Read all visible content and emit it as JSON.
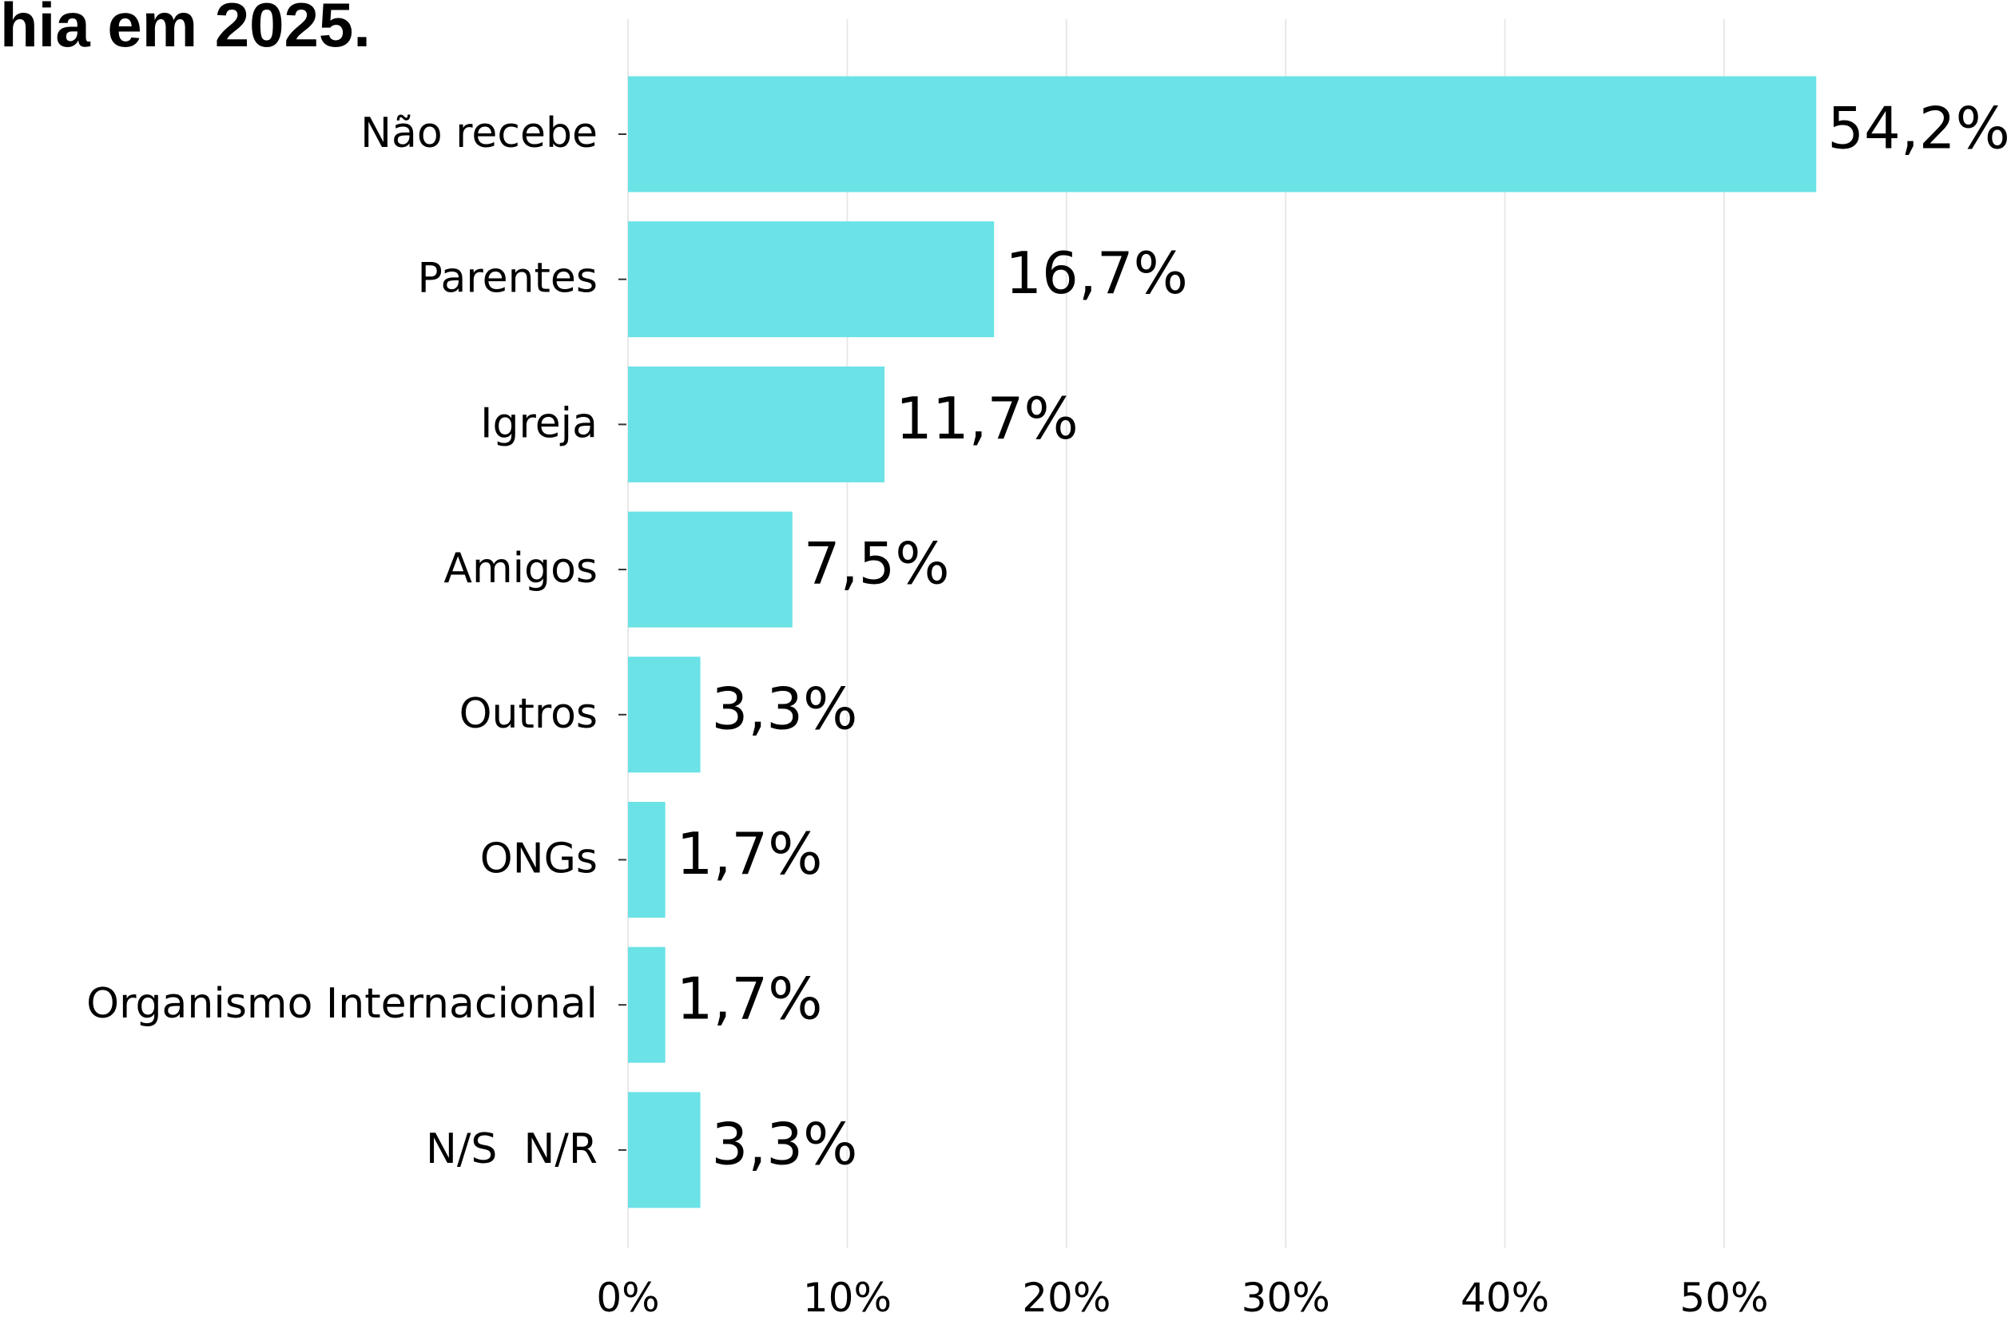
{
  "chart_data": {
    "type": "bar",
    "orientation": "horizontal",
    "title": "hia em 2025.",
    "categories": [
      "Não recebe",
      "Parentes",
      "Igreja",
      "Amigos",
      "Outros",
      "ONGs",
      "Organismo Internacional",
      "N/S  N/R"
    ],
    "values": [
      54.2,
      16.7,
      11.7,
      7.5,
      3.3,
      1.7,
      1.7,
      3.3
    ],
    "value_labels": [
      "54,2%",
      "16,7%",
      "11,7%",
      "7,5%",
      "3,3%",
      "1,7%",
      "1,7%",
      "3,3%"
    ],
    "color": "#6ae2e6",
    "xlim": [
      0,
      60
    ],
    "xticks": [
      {
        "value": 0,
        "label": "0%"
      },
      {
        "value": 10,
        "label": "10%"
      },
      {
        "value": 20,
        "label": "20%"
      },
      {
        "value": 30,
        "label": "30%"
      },
      {
        "value": 40,
        "label": "40%"
      },
      {
        "value": 50,
        "label": "50%"
      }
    ],
    "grid": true
  }
}
